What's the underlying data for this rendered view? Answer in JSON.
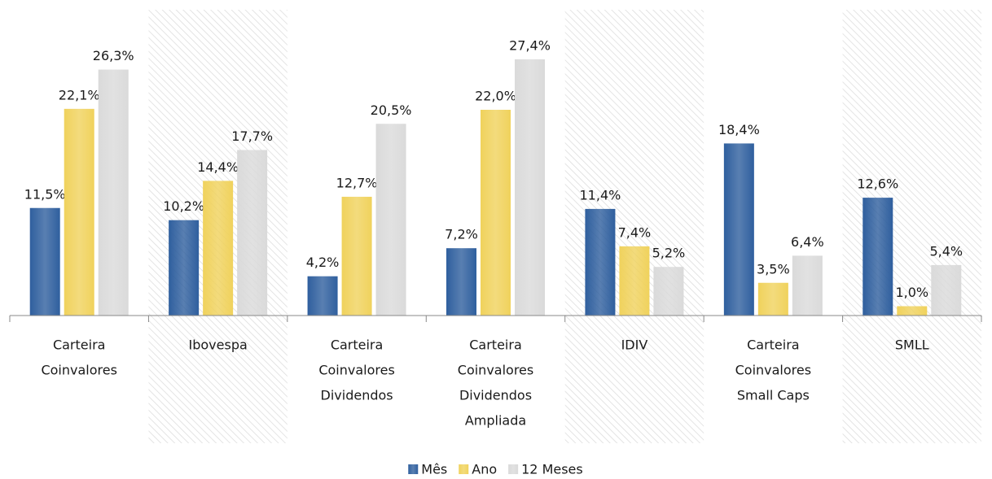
{
  "chart_data": {
    "type": "bar",
    "categories": [
      [
        "Carteira",
        "Coinvalores"
      ],
      [
        "Ibovespa"
      ],
      [
        "Carteira",
        "Coinvalores",
        "Dividendos"
      ],
      [
        "Carteira",
        "Coinvalores",
        "Dividendos",
        "Ampliada"
      ],
      [
        "IDIV"
      ],
      [
        "Carteira",
        "Coinvalores",
        "Small Caps"
      ],
      [
        "SMLL"
      ]
    ],
    "series": [
      {
        "name": "Mês",
        "color": "#2f5f9e",
        "values": [
          11.5,
          10.2,
          4.2,
          7.2,
          11.4,
          18.4,
          12.6
        ],
        "value_labels": [
          "11,5%",
          "10,2%",
          "4,2%",
          "7,2%",
          "11,4%",
          "18,4%",
          "12,6%"
        ]
      },
      {
        "name": "Ano",
        "color": "#f0d25c",
        "values": [
          22.1,
          14.4,
          12.7,
          22.0,
          7.4,
          3.5,
          1.0
        ],
        "value_labels": [
          "22,1%",
          "14,4%",
          "12,7%",
          "22,0%",
          "7,4%",
          "3,5%",
          "1,0%"
        ]
      },
      {
        "name": "12 Meses",
        "color": "#dadada",
        "values": [
          26.3,
          17.7,
          20.5,
          27.4,
          5.2,
          6.4,
          5.4
        ],
        "value_labels": [
          "26,3%",
          "17,7%",
          "20,5%",
          "27,4%",
          "5,2%",
          "6,4%",
          "5,4%"
        ]
      }
    ],
    "legend": "bottom"
  }
}
